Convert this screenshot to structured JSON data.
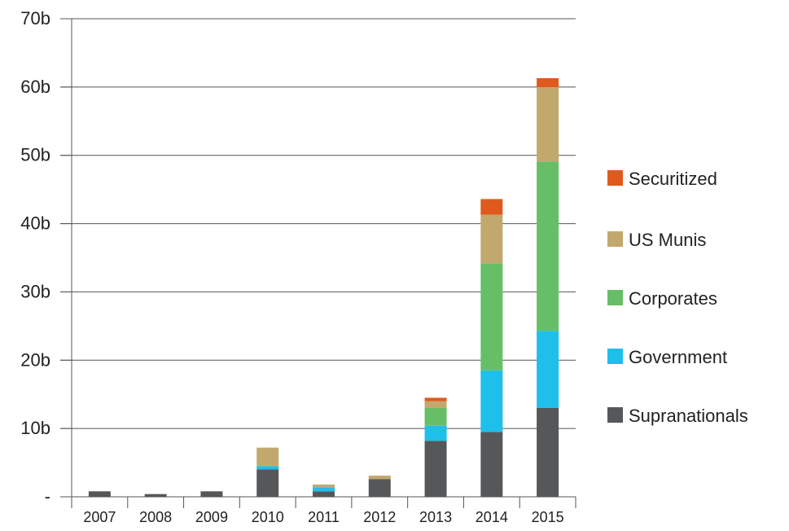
{
  "chart_data": {
    "type": "bar",
    "stacked": true,
    "title": "",
    "xlabel": "",
    "ylabel": "",
    "categories": [
      "2007",
      "2008",
      "2009",
      "2010",
      "2011",
      "2012",
      "2013",
      "2014",
      "2015"
    ],
    "ylim": [
      0,
      70
    ],
    "yticks": [
      {
        "value": 0,
        "label": "-"
      },
      {
        "value": 10,
        "label": "10b"
      },
      {
        "value": 20,
        "label": "20b"
      },
      {
        "value": 30,
        "label": "30b"
      },
      {
        "value": 40,
        "label": "40b"
      },
      {
        "value": 50,
        "label": "50b"
      },
      {
        "value": 60,
        "label": "60b"
      },
      {
        "value": 70,
        "label": "70b"
      }
    ],
    "grid": true,
    "legend_position": "right",
    "series": [
      {
        "name": "Supranationals",
        "color": "#555759",
        "values": [
          0.8,
          0.4,
          0.8,
          4.0,
          0.8,
          2.6,
          8.2,
          9.5,
          13.0
        ]
      },
      {
        "name": "Government",
        "color": "#1ebfea",
        "values": [
          0.0,
          0.0,
          0.0,
          0.5,
          0.6,
          0.0,
          2.2,
          9.0,
          11.3
        ]
      },
      {
        "name": "Corporates",
        "color": "#66bf66",
        "values": [
          0.0,
          0.0,
          0.0,
          0.0,
          0.0,
          0.0,
          2.6,
          15.7,
          24.8
        ]
      },
      {
        "name": "US Munis",
        "color": "#c3a86e",
        "values": [
          0.0,
          0.0,
          0.0,
          2.7,
          0.4,
          0.5,
          1.0,
          7.1,
          10.9
        ]
      },
      {
        "name": "Securitized",
        "color": "#e05a1e",
        "values": [
          0.0,
          0.0,
          0.0,
          0.0,
          0.0,
          0.0,
          0.5,
          2.3,
          1.3
        ]
      }
    ],
    "legend_order": [
      "Securitized",
      "US Munis",
      "Corporates",
      "Government",
      "Supranationals"
    ]
  }
}
